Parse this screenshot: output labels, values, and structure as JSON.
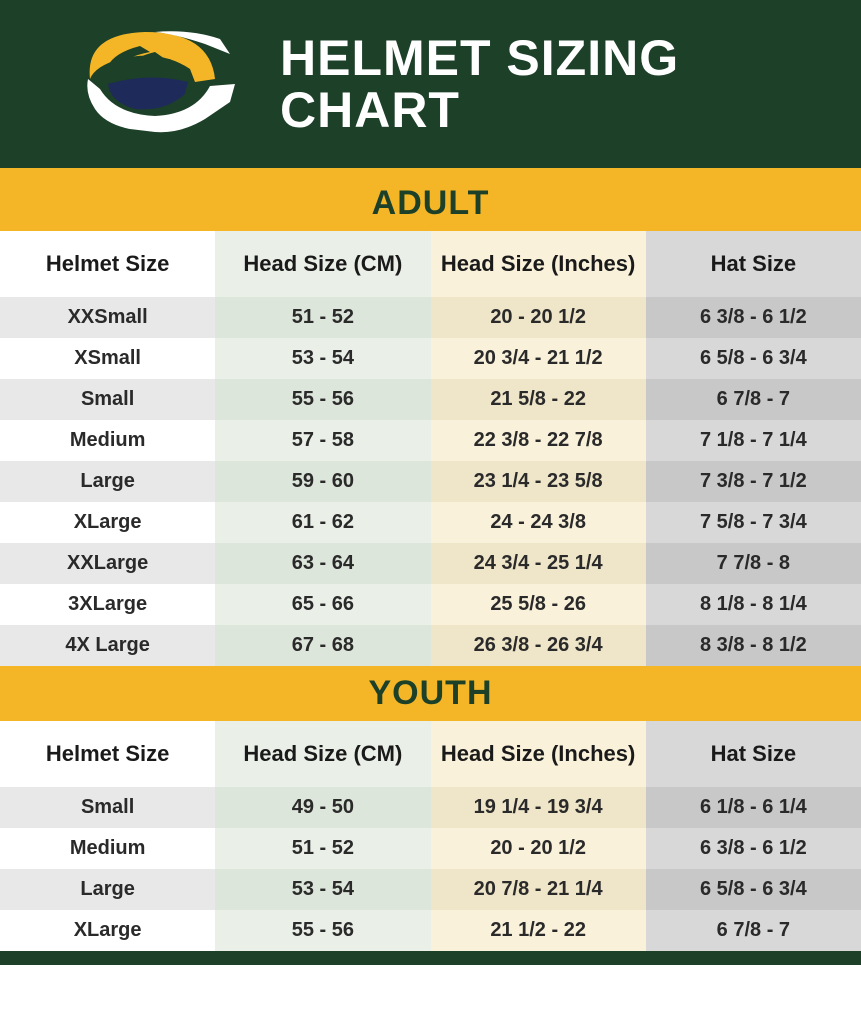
{
  "title": "HELMET SIZING CHART",
  "colors": {
    "header_bg": "#1d4028",
    "accent": "#f4b627",
    "col1_even": "#ffffff",
    "col1_odd": "#e8e8e8",
    "col2_even": "#eaf0e8",
    "col2_odd": "#dde6da",
    "col3_even": "#f9f1da",
    "col3_odd": "#efe5c8",
    "col4_even": "#d8d8d8",
    "col4_odd": "#c8c8c8"
  },
  "columns": [
    "Helmet Size",
    "Head Size (CM)",
    "Head Size (Inches)",
    "Hat Size"
  ],
  "sections": [
    {
      "label": "ADULT",
      "rows": [
        [
          "XXSmall",
          "51 - 52",
          "20 - 20 1/2",
          "6 3/8 - 6 1/2"
        ],
        [
          "XSmall",
          "53 - 54",
          "20 3/4 - 21 1/2",
          "6 5/8 - 6 3/4"
        ],
        [
          "Small",
          "55 - 56",
          "21 5/8 - 22",
          "6 7/8 - 7"
        ],
        [
          "Medium",
          "57 - 58",
          "22 3/8 - 22 7/8",
          "7 1/8 - 7 1/4"
        ],
        [
          "Large",
          "59 - 60",
          "23 1/4 - 23 5/8",
          "7 3/8 - 7 1/2"
        ],
        [
          "XLarge",
          "61 - 62",
          "24 - 24 3/8",
          "7 5/8 - 7 3/4"
        ],
        [
          "XXLarge",
          "63 - 64",
          "24 3/4 - 25 1/4",
          "7 7/8 - 8"
        ],
        [
          "3XLarge",
          "65 - 66",
          "25 5/8 - 26",
          "8 1/8 - 8 1/4"
        ],
        [
          "4X Large",
          "67 - 68",
          "26 3/8 - 26 3/4",
          "8 3/8 - 8 1/2"
        ]
      ]
    },
    {
      "label": "YOUTH",
      "rows": [
        [
          "Small",
          "49 - 50",
          "19 1/4 - 19 3/4",
          "6 1/8 - 6 1/4"
        ],
        [
          "Medium",
          "51 - 52",
          "20 - 20 1/2",
          "6 3/8 - 6 1/2"
        ],
        [
          "Large",
          "53 - 54",
          "20 7/8 - 21 1/4",
          "6 5/8 - 6 3/4"
        ],
        [
          "XLarge",
          "55 - 56",
          "21 1/2 - 22",
          "6 7/8 - 7"
        ]
      ]
    }
  ]
}
